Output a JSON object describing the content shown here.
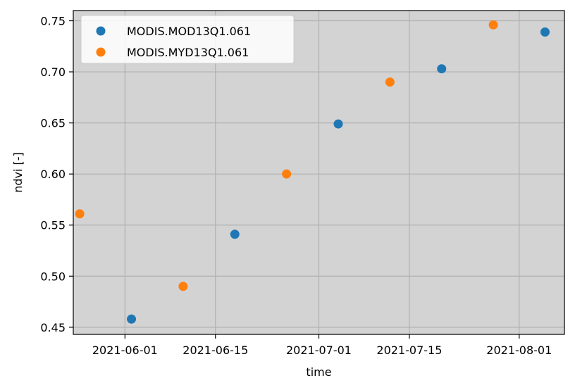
{
  "chart_data": {
    "type": "scatter",
    "xlabel": "time",
    "ylabel": "ndvi [-]",
    "x_axis_type": "date",
    "xlim": [
      "2021-05-24",
      "2021-08-08"
    ],
    "ylim": [
      0.443,
      0.76
    ],
    "x_ticks": [
      "2021-06-01",
      "2021-06-15",
      "2021-07-01",
      "2021-07-15",
      "2021-08-01"
    ],
    "y_ticks": [
      0.45,
      0.5,
      0.55,
      0.6,
      0.65,
      0.7,
      0.75
    ],
    "y_tick_labels": [
      "0.45",
      "0.50",
      "0.55",
      "0.60",
      "0.65",
      "0.70",
      "0.75"
    ],
    "grid": true,
    "background": "#d3d3d3",
    "legend_position": "top-left",
    "series": [
      {
        "name": "MODIS.MOD13Q1.061",
        "color": "#1f77b4",
        "points": [
          {
            "x": "2021-06-02",
            "y": 0.458
          },
          {
            "x": "2021-06-18",
            "y": 0.541
          },
          {
            "x": "2021-07-04",
            "y": 0.649
          },
          {
            "x": "2021-07-20",
            "y": 0.703
          },
          {
            "x": "2021-08-05",
            "y": 0.739
          }
        ]
      },
      {
        "name": "MODIS.MYD13Q1.061",
        "color": "#ff7f0e",
        "points": [
          {
            "x": "2021-05-25",
            "y": 0.561
          },
          {
            "x": "2021-06-10",
            "y": 0.49
          },
          {
            "x": "2021-06-26",
            "y": 0.6
          },
          {
            "x": "2021-07-12",
            "y": 0.69
          },
          {
            "x": "2021-07-28",
            "y": 0.746
          }
        ]
      }
    ]
  }
}
